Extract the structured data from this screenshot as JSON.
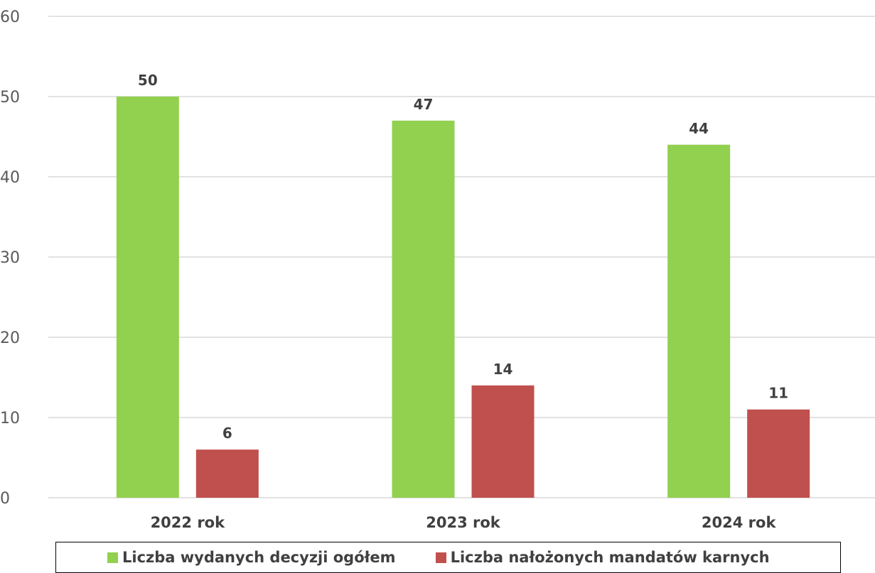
{
  "chart_data": {
    "type": "bar",
    "categories": [
      "2022 rok",
      "2023 rok",
      "2024 rok"
    ],
    "series": [
      {
        "name": "Liczba wydanych decyzji ogółem",
        "color": "#92D050",
        "values": [
          50,
          47,
          44
        ]
      },
      {
        "name": "Liczba nałożonych mandatów karnych",
        "color": "#C0504D",
        "values": [
          6,
          14,
          11
        ]
      }
    ],
    "y_ticks": [
      "0",
      "10",
      "20",
      "30",
      "40",
      "50",
      "60"
    ],
    "ylim": [
      0,
      60
    ],
    "grid": true,
    "legend_position": "bottom",
    "gridline_color": "#D9D9D9",
    "axis_color": "#D9D9D9"
  }
}
